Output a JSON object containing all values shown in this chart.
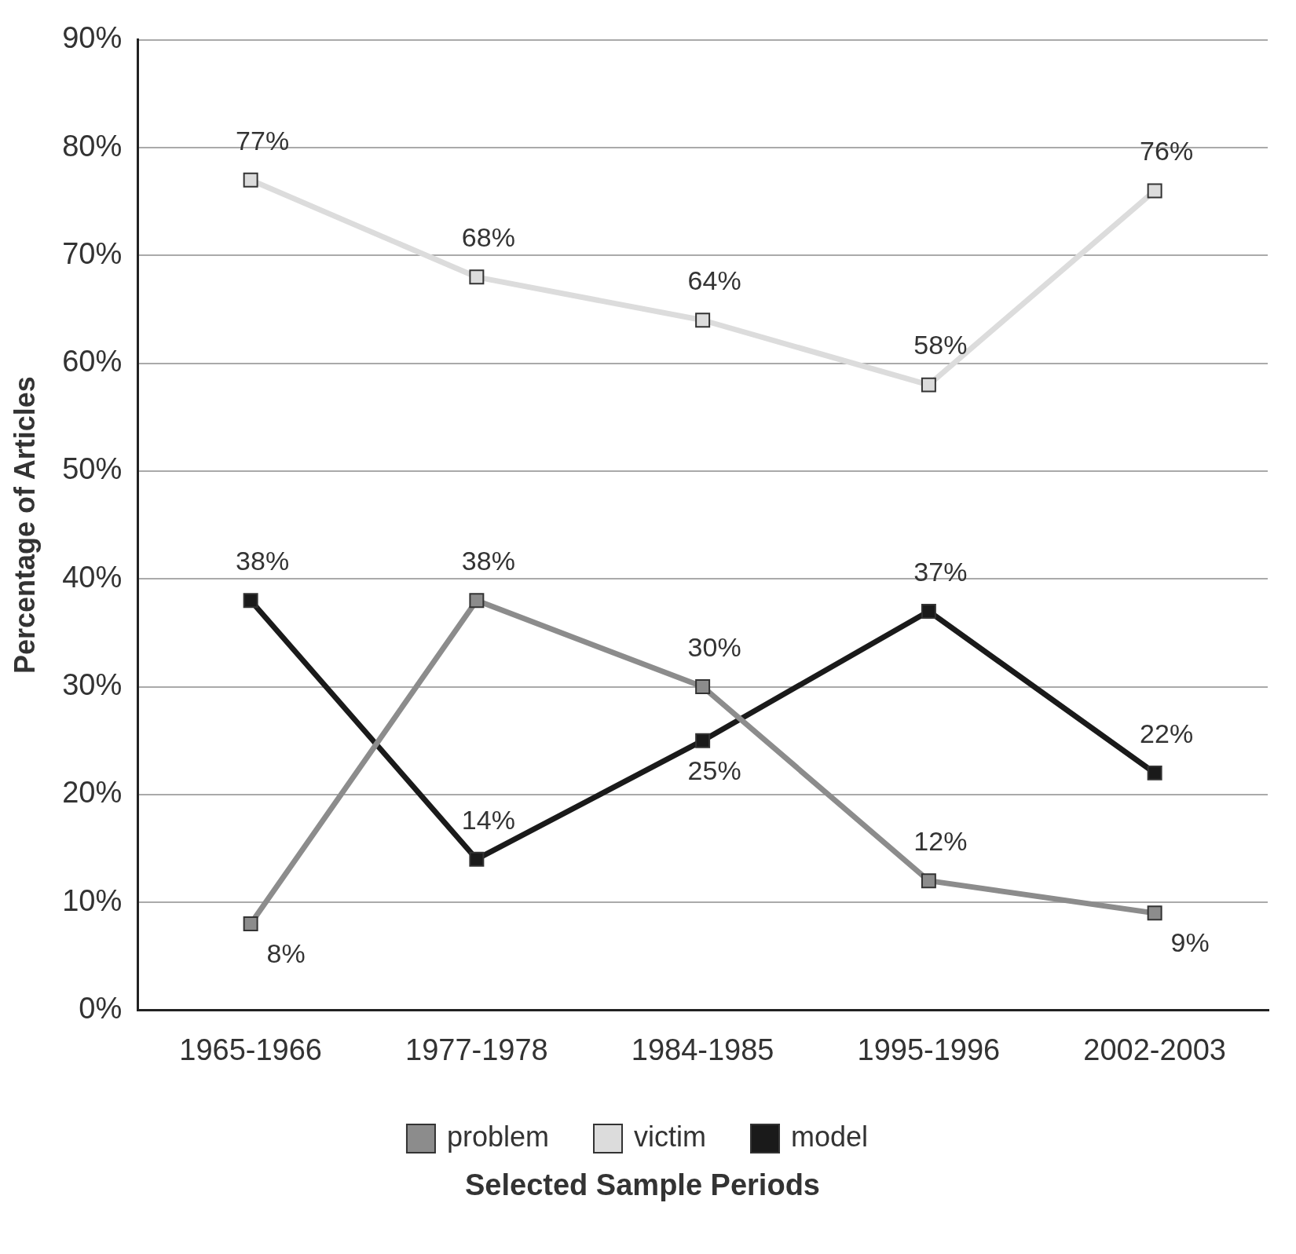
{
  "chart_data": {
    "type": "line",
    "xlabel": "Selected Sample Periods",
    "ylabel": "Percentage of Articles",
    "categories": [
      "1965-1966",
      "1977-1978",
      "1984-1985",
      "1995-1996",
      "2002-2003"
    ],
    "series": [
      {
        "name": "problem",
        "color": "#8c8c8c",
        "values": [
          8,
          38,
          30,
          12,
          9
        ],
        "value_labels": [
          "8%",
          "38%",
          "30%",
          "12%",
          "9%"
        ]
      },
      {
        "name": "victim",
        "color": "#dcdcdc",
        "values": [
          77,
          68,
          64,
          58,
          76
        ],
        "value_labels": [
          "77%",
          "68%",
          "64%",
          "58%",
          "76%"
        ]
      },
      {
        "name": "model",
        "color": "#1a1a1a",
        "values": [
          38,
          14,
          25,
          37,
          22
        ],
        "value_labels": [
          "38%",
          "14%",
          "25%",
          "37%",
          "22%"
        ]
      }
    ],
    "ylim": [
      0,
      90
    ],
    "yticks": [
      {
        "value": 0,
        "label": "0%"
      },
      {
        "value": 10,
        "label": "10%"
      },
      {
        "value": 20,
        "label": "20%"
      },
      {
        "value": 30,
        "label": "30%"
      },
      {
        "value": 40,
        "label": "40%"
      },
      {
        "value": 50,
        "label": "50%"
      },
      {
        "value": 60,
        "label": "60%"
      },
      {
        "value": 70,
        "label": "70%"
      },
      {
        "value": 80,
        "label": "80%"
      },
      {
        "value": 90,
        "label": "90%"
      }
    ],
    "grid": "y",
    "legend": "bottom",
    "marker": "square",
    "line_style": "solid"
  }
}
